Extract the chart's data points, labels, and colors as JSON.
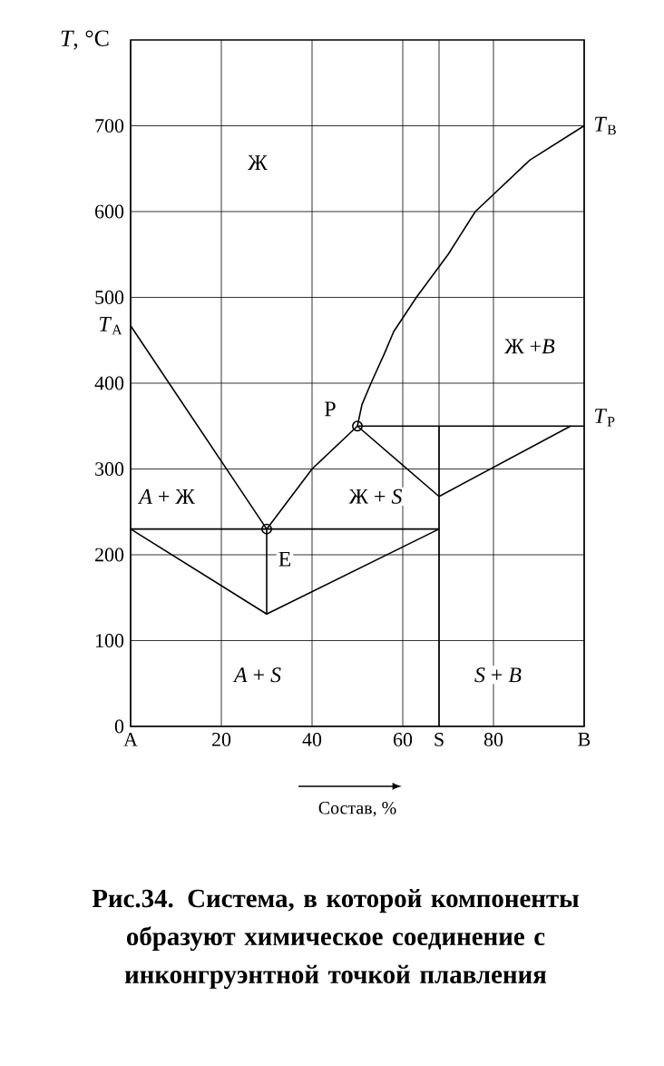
{
  "chart_data": {
    "type": "line",
    "xlabel": "Состав, %",
    "ylabel": "*T*, °C",
    "xlim": [
      0,
      100
    ],
    "ylim": [
      0,
      800
    ],
    "xticks": [
      {
        "value": 0,
        "label": "A"
      },
      20,
      40,
      60,
      {
        "value": 68,
        "label": "S"
      },
      80,
      {
        "value": 100,
        "label": "B"
      }
    ],
    "yticks": [
      0,
      100,
      200,
      300,
      400,
      500,
      600,
      700
    ],
    "grid": true,
    "series": [
      {
        "color": "#000000",
        "x": [
          0,
          30
        ],
        "values": [
          467,
          230
        ]
      },
      {
        "color": "#000000",
        "x": [
          30,
          40,
          50
        ],
        "values": [
          230,
          300,
          350
        ]
      },
      {
        "color": "#000000",
        "x": [
          50,
          51,
          53,
          56,
          58,
          63,
          70,
          76,
          88,
          100
        ],
        "values": [
          350,
          375,
          400,
          435,
          460,
          500,
          550,
          600,
          660,
          700
        ]
      },
      {
        "color": "#000000",
        "x": [
          50,
          100
        ],
        "values": [
          350,
          350
        ]
      },
      {
        "color": "#000000",
        "x": [
          50,
          68,
          97
        ],
        "values": [
          350,
          268,
          350
        ]
      },
      {
        "color": "#000000",
        "x": [
          68,
          68
        ],
        "values": [
          0,
          350
        ]
      },
      {
        "color": "#000000",
        "x": [
          0,
          68
        ],
        "values": [
          230,
          230
        ]
      },
      {
        "color": "#000000",
        "x": [
          0,
          30,
          68
        ],
        "values": [
          230,
          131,
          230
        ]
      },
      {
        "color": "#000000",
        "x": [
          30,
          30
        ],
        "values": [
          230,
          131
        ]
      },
      {
        "type": "scatter",
        "color": "#000000",
        "marker": "circle",
        "x": [
          30,
          50
        ],
        "values": [
          230,
          350
        ]
      }
    ],
    "annotations": [
      {
        "text": "Ж",
        "x": 28,
        "y": 657
      },
      {
        "text": "Ж +*B*",
        "x": 88,
        "y": 443
      },
      {
        "text": "*A* + Ж",
        "x": 8,
        "y": 268
      },
      {
        "text": "Ж + *S*",
        "x": 54,
        "y": 268
      },
      {
        "text": "E",
        "x": 34,
        "y": 195
      },
      {
        "text": "*A* + *S*",
        "x": 28,
        "y": 60
      },
      {
        "text": "*S* + *B*",
        "x": 81,
        "y": 60
      },
      {
        "text": "P",
        "x": 44,
        "y": 370
      },
      {
        "text": "*T*$_{A}$",
        "x": 0,
        "y": 467
      },
      {
        "text": "*T*$_{B}$",
        "x": 100,
        "y": 700
      },
      {
        "text": "*T*$_{P}$",
        "x": 100,
        "y": 360
      },
      "Рис.34. Система, в которой компоненты образуют химическое соединение с инконгруэнтной точкой плавления"
    ]
  }
}
